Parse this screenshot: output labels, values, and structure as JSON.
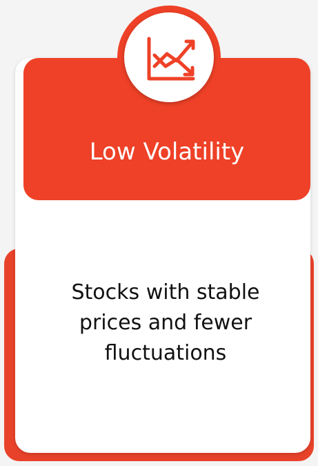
{
  "title": "Low Volatility",
  "description": "Stocks with stable prices and fewer fluctuations"
}
